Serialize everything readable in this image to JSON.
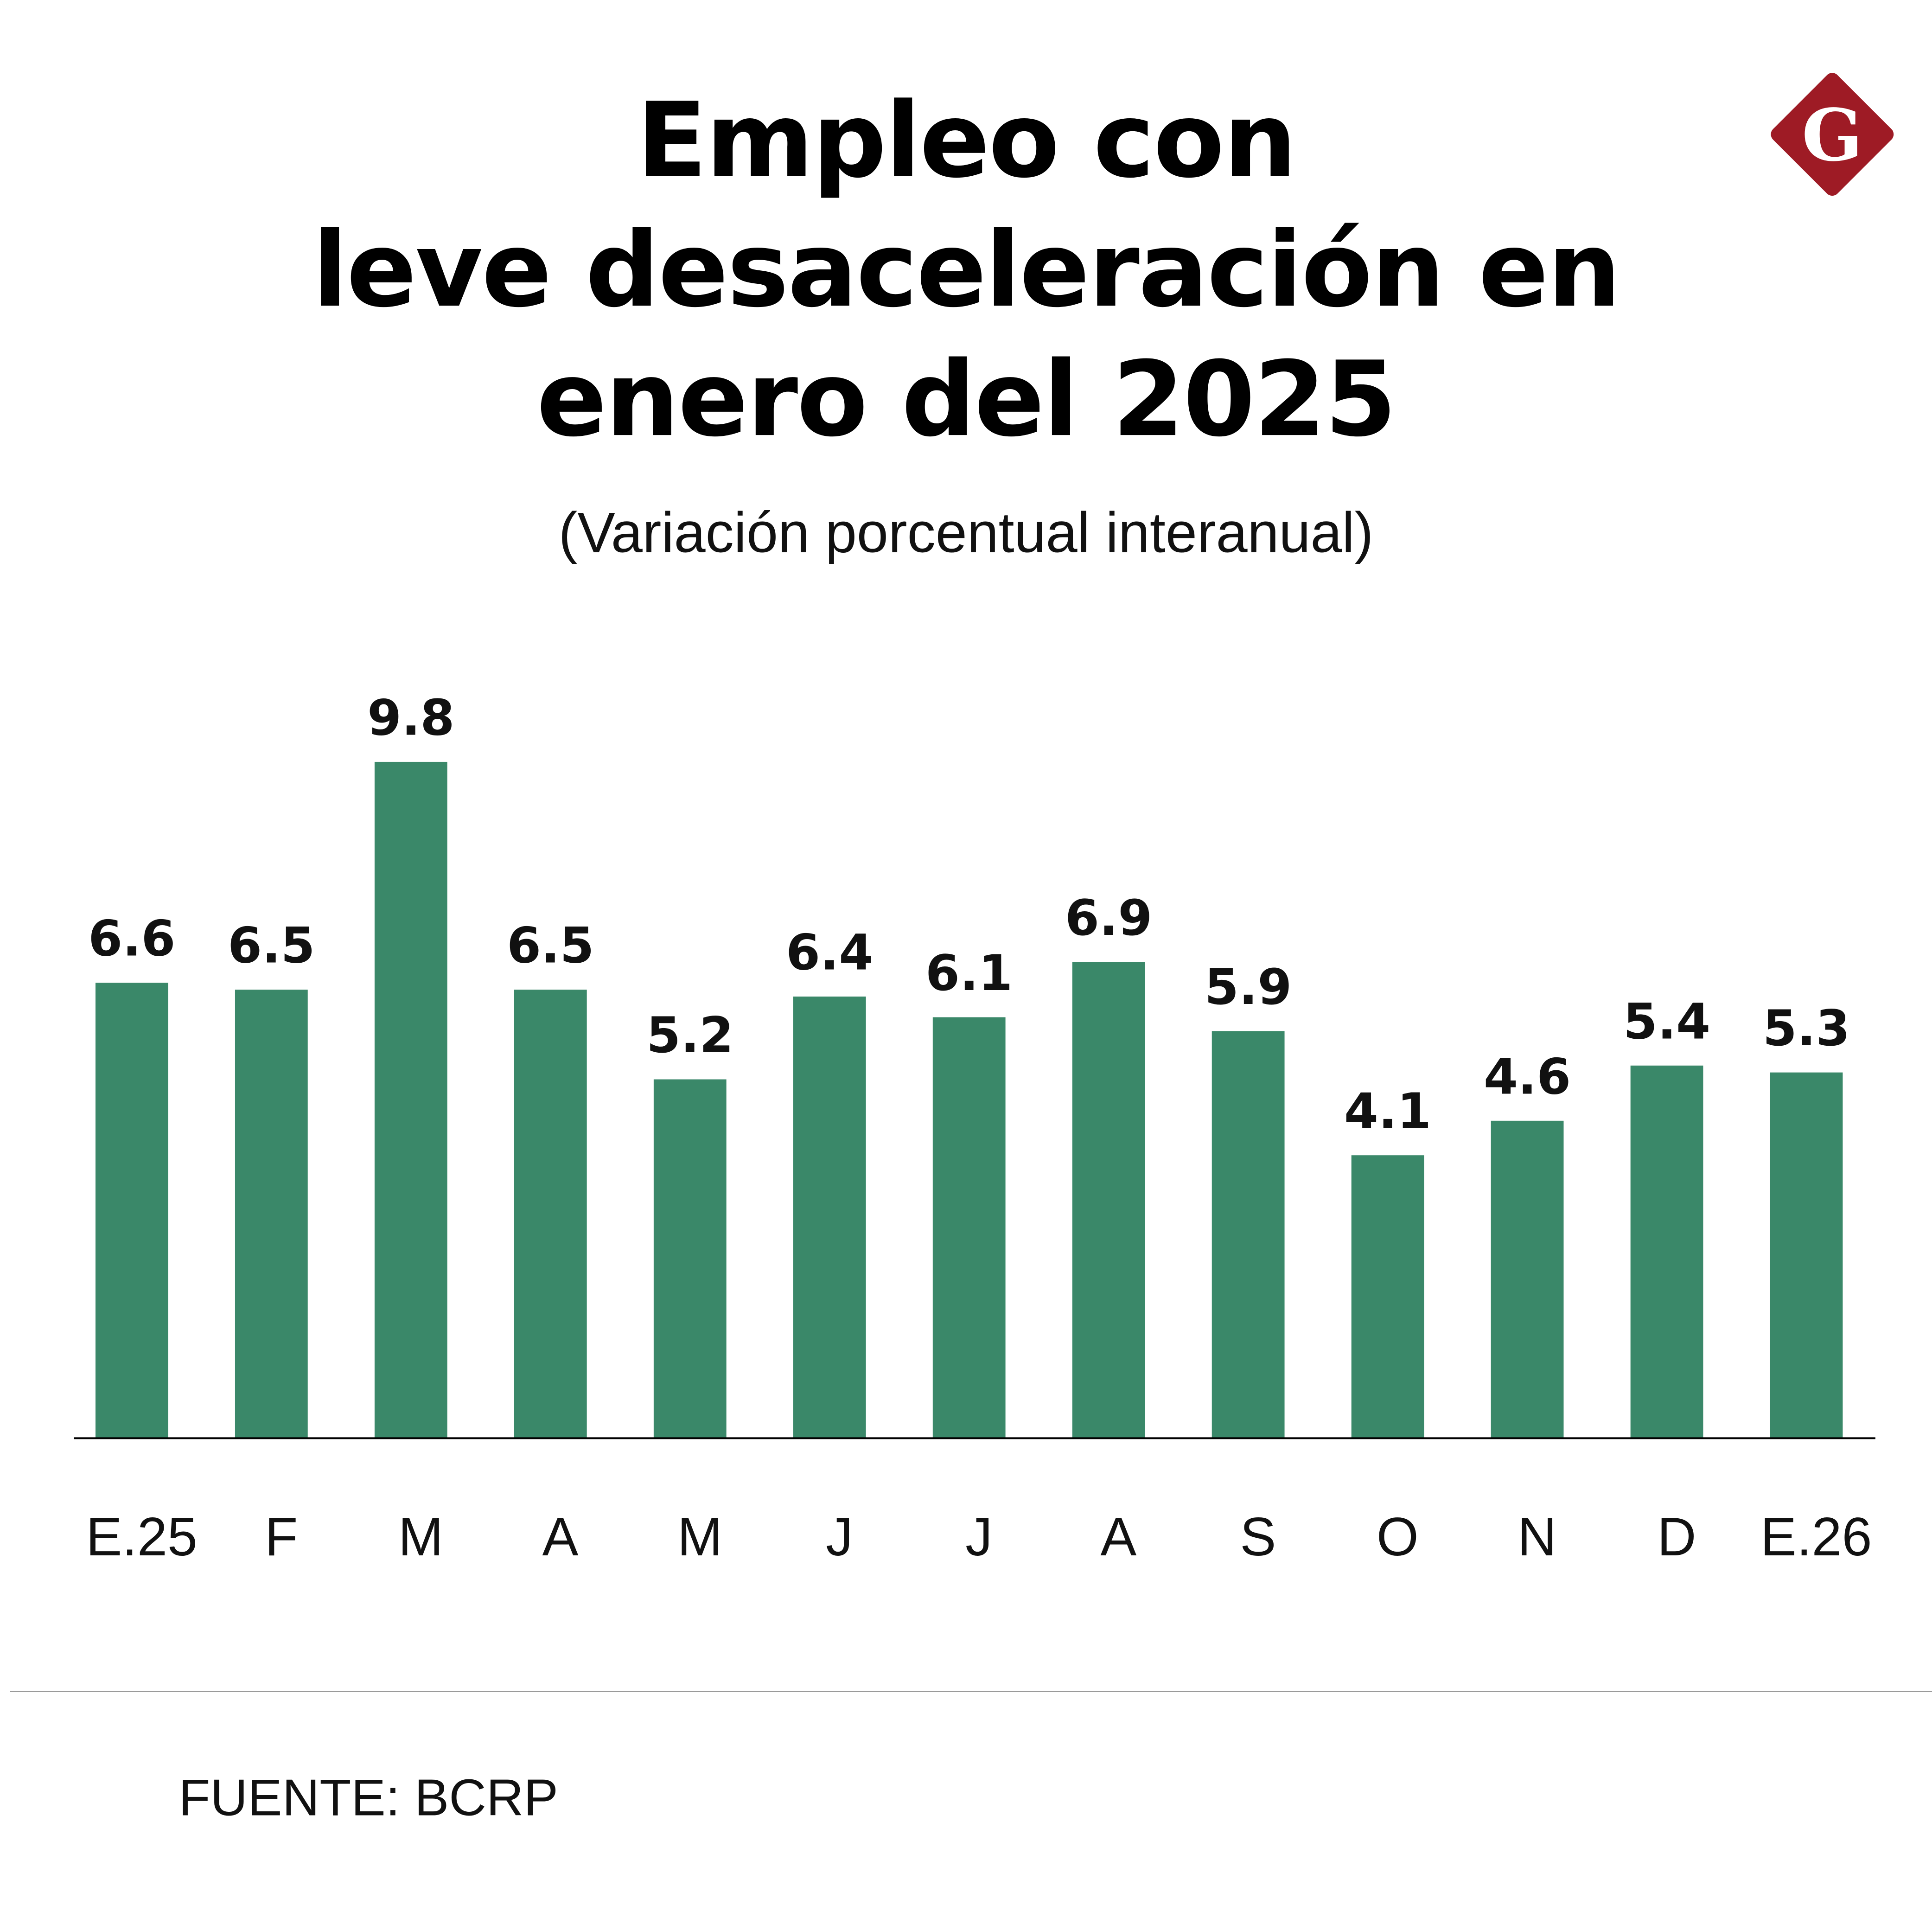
{
  "header": {
    "title_lines": [
      "Empleo con",
      "leve desaceleración en",
      "enero del 2025"
    ],
    "subtitle": "(Variación porcentual interanual)",
    "logo_letter": "G"
  },
  "footer": {
    "source": "FUENTE: BCRP"
  },
  "colors": {
    "bar": "#3a8869",
    "logo": "#9e1b25",
    "axis": "#000000"
  },
  "chart_data": {
    "type": "bar",
    "title": "Empleo con leve desaceleración en enero del 2025",
    "subtitle": "(Variación porcentual interanual)",
    "categories": [
      "E.25",
      "F",
      "M",
      "A",
      "M",
      "J",
      "J",
      "A",
      "S",
      "O",
      "N",
      "D",
      "E.26"
    ],
    "values": [
      6.6,
      6.5,
      9.8,
      6.5,
      5.2,
      6.4,
      6.1,
      6.9,
      5.9,
      4.1,
      4.6,
      5.4,
      5.3
    ],
    "value_labels": [
      "6.6",
      "6.5",
      "9.8",
      "6.5",
      "5.2",
      "6.4",
      "6.1",
      "6.9",
      "5.9",
      "4.1",
      "4.6",
      "5.4",
      "5.3"
    ],
    "xlabel": "",
    "ylabel": "",
    "ylim": [
      0,
      10
    ],
    "grid": false,
    "legend": "none"
  }
}
